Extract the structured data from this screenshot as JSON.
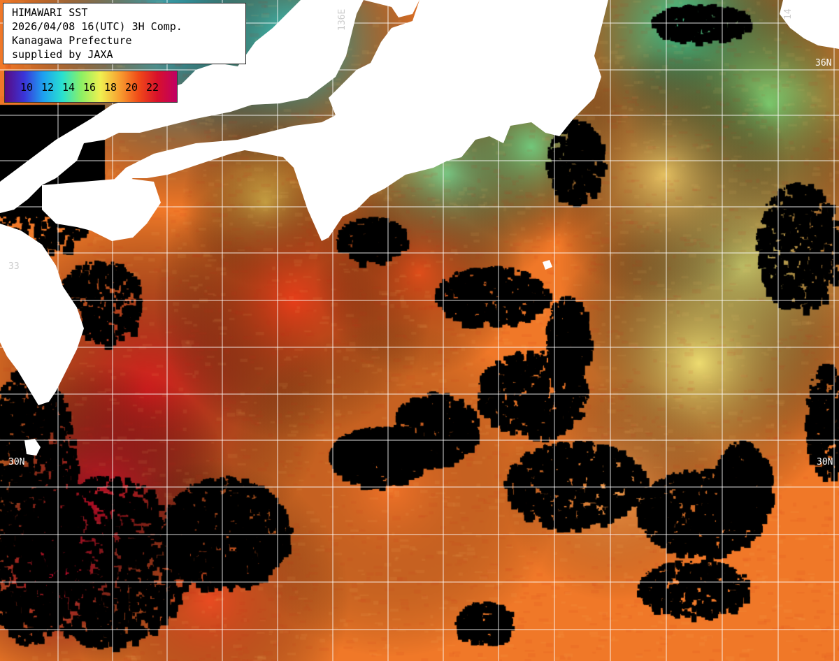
{
  "info": {
    "line1": "HIMAWARI SST",
    "line2": "2026/04/08 16(UTC) 3H Comp.",
    "line3": "Kanagawa Prefecture",
    "line4": "supplied by JAXA"
  },
  "colorbar": {
    "ticks": [
      "10",
      "12",
      "14",
      "16",
      "18",
      "20",
      "22"
    ],
    "gradient": [
      "#5a0a82",
      "#3a34d8",
      "#1ea0f0",
      "#28e0d0",
      "#8cf064",
      "#f0f050",
      "#f8a030",
      "#f04a18",
      "#d8102c",
      "#c00064"
    ]
  },
  "grid_labels": {
    "lat_36": "36N",
    "lat_30_left": "30N",
    "lat_30_right": "30N",
    "lat_33": "33",
    "lon_136": "136E",
    "lon_14": "14"
  },
  "colors": {
    "land": "#ffffff",
    "cloud": "#000000",
    "grid": "#ffffff"
  }
}
